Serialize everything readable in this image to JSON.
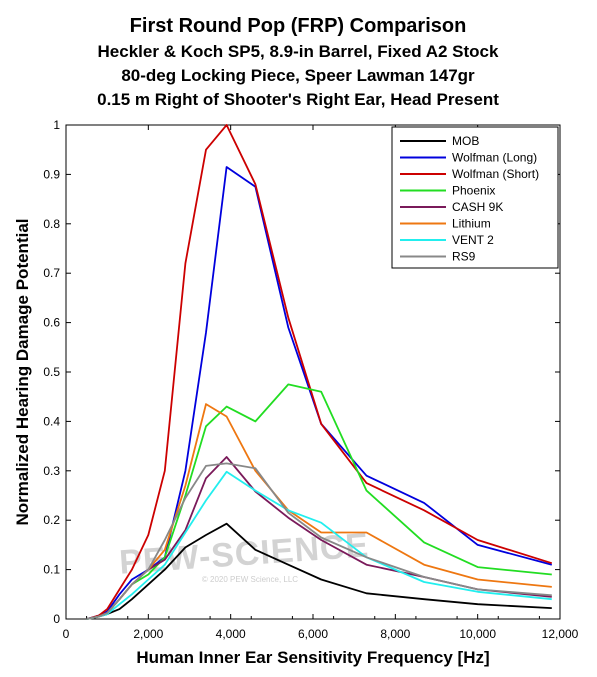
{
  "chart_data": {
    "type": "line",
    "title": "First Round Pop (FRP) Comparison",
    "subtitle": [
      "Heckler & Koch SP5, 8.9-in Barrel, Fixed A2 Stock",
      "80-deg Locking Piece, Speer Lawman 147gr",
      "0.15 m Right of Shooter's Right Ear, Head Present"
    ],
    "xlabel": "Human Inner Ear Sensitivity Frequency [Hz]",
    "ylabel": "Normalized Hearing Damage Potential",
    "xlim": [
      0,
      12000
    ],
    "ylim": [
      0,
      1
    ],
    "xticks": [
      0,
      2000,
      4000,
      6000,
      8000,
      10000,
      12000
    ],
    "xtick_labels": [
      "0",
      "2,000",
      "4,000",
      "6,000",
      "8,000",
      "10,000",
      "12,000"
    ],
    "yticks": [
      0,
      0.1,
      0.2,
      0.3,
      0.4,
      0.5,
      0.6,
      0.7,
      0.8,
      0.9,
      1
    ],
    "ytick_labels": [
      "0",
      "0.1",
      "0.2",
      "0.3",
      "0.4",
      "0.5",
      "0.6",
      "0.7",
      "0.8",
      "0.9",
      "1"
    ],
    "grid": false,
    "legend_position": "top-right",
    "x": [
      500,
      640,
      800,
      1000,
      1300,
      1600,
      2000,
      2400,
      2900,
      3400,
      3900,
      4600,
      5400,
      6200,
      7300,
      8700,
      10000,
      11800
    ],
    "series": [
      {
        "name": "MOB",
        "color": "#000000",
        "values": [
          0,
          0.002,
          0.005,
          0.01,
          0.02,
          0.04,
          0.07,
          0.1,
          0.145,
          0.17,
          0.193,
          0.14,
          0.11,
          0.08,
          0.052,
          0.04,
          0.03,
          0.022
        ]
      },
      {
        "name": "Wolfman (Long)",
        "color": "#0000dd",
        "values": [
          0,
          0.003,
          0.007,
          0.015,
          0.05,
          0.08,
          0.1,
          0.125,
          0.3,
          0.58,
          0.915,
          0.875,
          0.59,
          0.395,
          0.29,
          0.235,
          0.15,
          0.11
        ]
      },
      {
        "name": "Wolfman (Short)",
        "color": "#cc0000",
        "values": [
          0,
          0.003,
          0.007,
          0.02,
          0.06,
          0.1,
          0.17,
          0.3,
          0.72,
          0.95,
          1.0,
          0.88,
          0.61,
          0.395,
          0.275,
          0.22,
          0.16,
          0.113
        ]
      },
      {
        "name": "Phoenix",
        "color": "#22dd22",
        "values": [
          0,
          0.002,
          0.005,
          0.012,
          0.04,
          0.07,
          0.09,
          0.125,
          0.25,
          0.39,
          0.43,
          0.4,
          0.475,
          0.46,
          0.26,
          0.155,
          0.105,
          0.09
        ]
      },
      {
        "name": "CASH 9K",
        "color": "#7a1a5a",
        "values": [
          0,
          0.002,
          0.005,
          0.012,
          0.04,
          0.07,
          0.1,
          0.12,
          0.18,
          0.285,
          0.328,
          0.258,
          0.205,
          0.16,
          0.11,
          0.085,
          0.06,
          0.045
        ]
      },
      {
        "name": "Lithium",
        "color": "#ee7711",
        "values": [
          0,
          0.002,
          0.005,
          0.012,
          0.04,
          0.07,
          0.1,
          0.14,
          0.27,
          0.435,
          0.41,
          0.3,
          0.22,
          0.175,
          0.175,
          0.11,
          0.08,
          0.065
        ]
      },
      {
        "name": "VENT 2",
        "color": "#22eeee",
        "values": [
          0,
          0.002,
          0.005,
          0.01,
          0.03,
          0.05,
          0.08,
          0.11,
          0.175,
          0.24,
          0.298,
          0.26,
          0.22,
          0.195,
          0.125,
          0.075,
          0.055,
          0.04
        ]
      },
      {
        "name": "RS9",
        "color": "#888888",
        "values": [
          0,
          0.002,
          0.005,
          0.012,
          0.04,
          0.07,
          0.1,
          0.16,
          0.245,
          0.31,
          0.315,
          0.305,
          0.215,
          0.165,
          0.125,
          0.085,
          0.06,
          0.048
        ]
      }
    ]
  },
  "watermark": {
    "brand": "PEW-SCIENCE",
    "copyright": "© 2020 PEW Science, LLC"
  }
}
